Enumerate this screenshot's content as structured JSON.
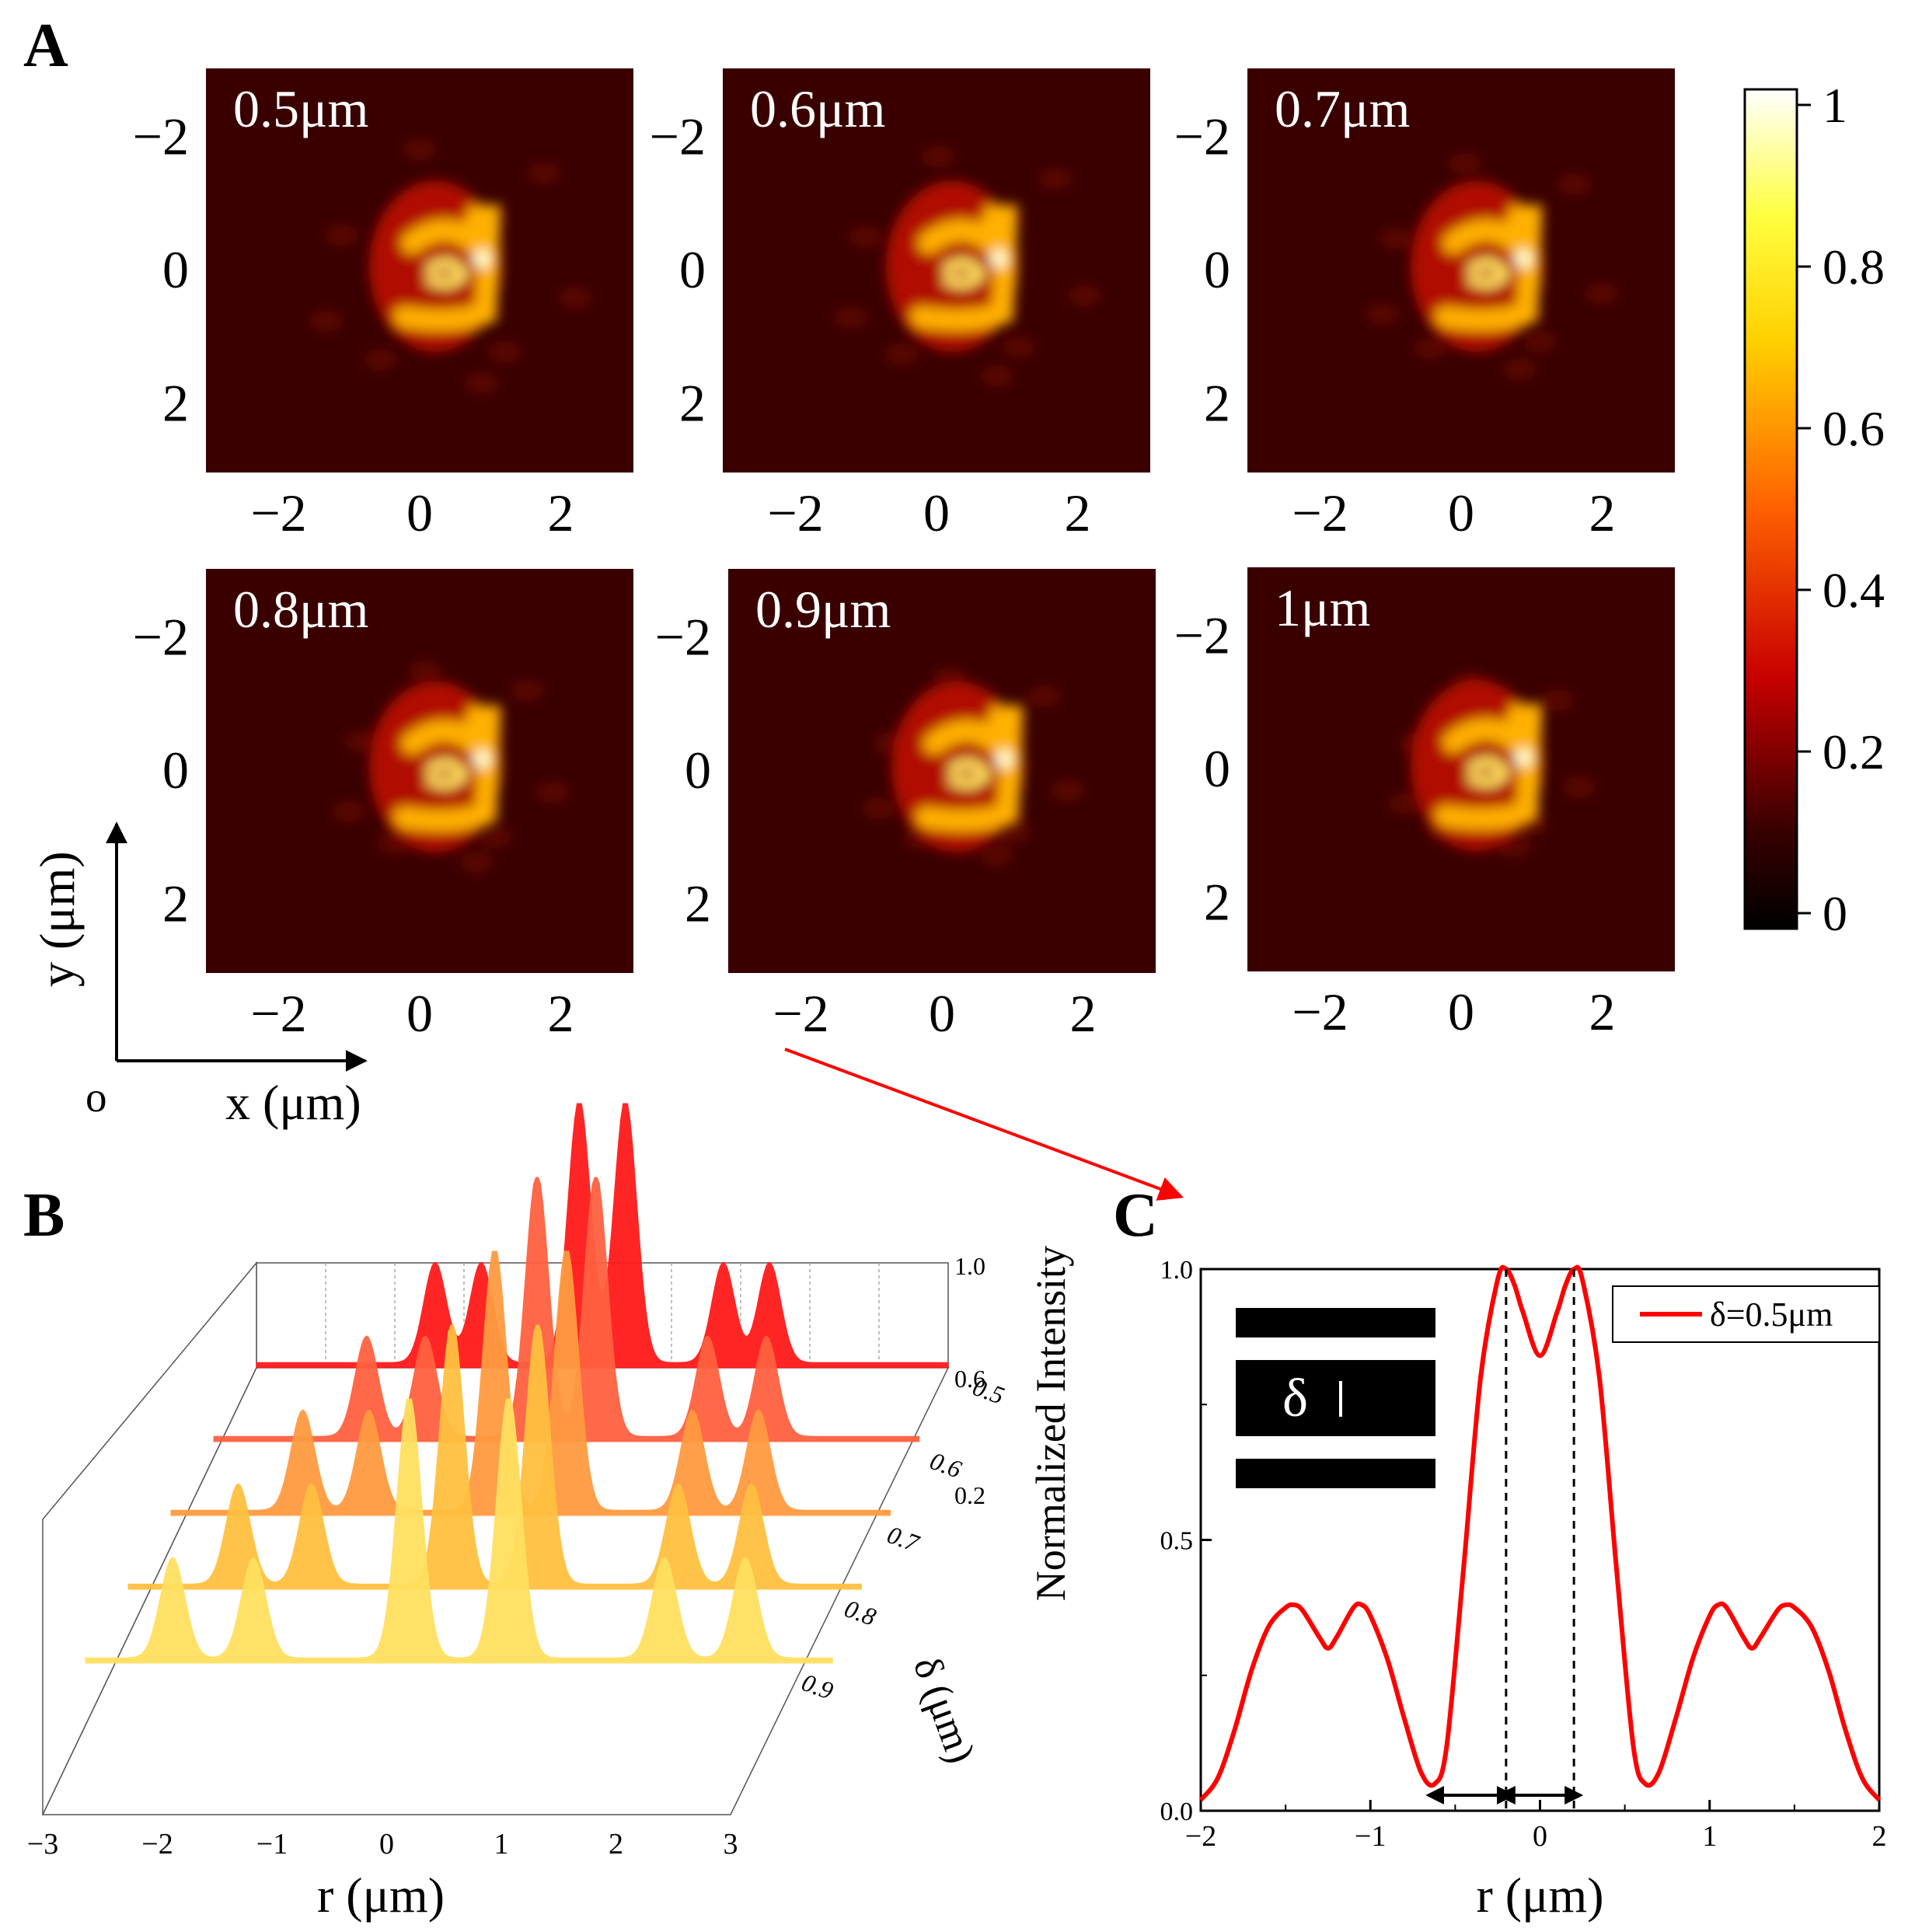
{
  "panel_labels": {
    "a": "A",
    "b": "B",
    "c": "C"
  },
  "colors": {
    "heat_bg": "#3a0000",
    "curve": "#ff0000"
  },
  "panel_a": {
    "axis_note": {
      "x_label": "x (μm)",
      "y_label": "y (μm)",
      "origin": "o"
    },
    "tick_labels": [
      "−2",
      "0",
      "2"
    ],
    "maps": [
      {
        "label": "0.5μm",
        "delta": 0.5
      },
      {
        "label": "0.6μm",
        "delta": 0.6
      },
      {
        "label": "0.7μm",
        "delta": 0.7
      },
      {
        "label": "0.8μm",
        "delta": 0.8
      },
      {
        "label": "0.9μm",
        "delta": 0.9
      },
      {
        "label": "1μm",
        "delta": 1.0
      }
    ],
    "colorbar": {
      "ticks": [
        "1",
        "0.8",
        "0.6",
        "0.4",
        "0.2",
        "0"
      ],
      "values": [
        1,
        0.8,
        0.6,
        0.4,
        0.2,
        0
      ]
    }
  },
  "chart_data": [
    {
      "type": "area",
      "title": "",
      "xlabel": "r (μm)",
      "zlabel": "δ (μm)",
      "x_ticks": [
        "−3",
        "−2",
        "−1",
        "0",
        "1",
        "2",
        "3"
      ],
      "z_ticks": [
        "1.0",
        "0.6",
        "0.2"
      ],
      "delta_ticks": [
        "0.5",
        "0.6",
        "0.7",
        "0.8",
        "0.9"
      ],
      "xlim": [
        -3,
        3
      ],
      "ylim": [
        0,
        1
      ],
      "series": [
        {
          "name": "0.5",
          "peaks": [
            -1.45,
            -1.05,
            -0.2,
            0.2,
            1.05,
            1.45
          ]
        },
        {
          "name": "0.6",
          "peaks": [
            -1.7,
            -1.2,
            -0.25,
            0.25,
            1.2,
            1.7
          ]
        },
        {
          "name": "0.7",
          "peaks": [
            -1.9,
            -1.35,
            -0.3,
            0.3,
            1.35,
            1.9
          ]
        },
        {
          "name": "0.8",
          "peaks": [
            -2.1,
            -1.5,
            -0.35,
            0.35,
            1.5,
            2.1
          ]
        },
        {
          "name": "0.9",
          "peaks": [
            -2.3,
            -1.65,
            -0.4,
            0.4,
            1.65,
            2.3
          ]
        }
      ]
    },
    {
      "type": "line",
      "title": "",
      "xlabel": "r (μm)",
      "ylabel": "Normalized Intensity",
      "xlim": [
        -2,
        2
      ],
      "ylim": [
        0,
        1
      ],
      "x_ticks": [
        "−2",
        "−1",
        "0",
        "1",
        "2"
      ],
      "y_ticks": [
        "0.0",
        "0.5",
        "1.0"
      ],
      "legend": "δ=0.5μm",
      "legend_position": "top-right",
      "inset_symbol": "δ",
      "series": [
        {
          "name": "δ=0.5μm",
          "x": [
            -2.0,
            -1.9,
            -1.8,
            -1.7,
            -1.6,
            -1.5,
            -1.45,
            -1.4,
            -1.3,
            -1.25,
            -1.2,
            -1.1,
            -1.05,
            -1.0,
            -0.9,
            -0.8,
            -0.7,
            -0.62,
            -0.55,
            -0.45,
            -0.35,
            -0.25,
            -0.2,
            -0.15,
            -0.1,
            0.0,
            0.1,
            0.15,
            0.2,
            0.25,
            0.35,
            0.45,
            0.55,
            0.62,
            0.7,
            0.8,
            0.9,
            1.0,
            1.05,
            1.1,
            1.2,
            1.25,
            1.3,
            1.4,
            1.45,
            1.5,
            1.6,
            1.7,
            1.8,
            1.9,
            2.0
          ],
          "y": [
            0.02,
            0.06,
            0.15,
            0.26,
            0.34,
            0.375,
            0.38,
            0.37,
            0.32,
            0.3,
            0.32,
            0.375,
            0.38,
            0.36,
            0.28,
            0.17,
            0.07,
            0.05,
            0.12,
            0.45,
            0.8,
            0.98,
            1.0,
            0.97,
            0.92,
            0.84,
            0.92,
            0.97,
            1.0,
            0.98,
            0.8,
            0.45,
            0.12,
            0.05,
            0.07,
            0.17,
            0.28,
            0.36,
            0.38,
            0.375,
            0.32,
            0.3,
            0.32,
            0.37,
            0.38,
            0.375,
            0.34,
            0.26,
            0.15,
            0.06,
            0.02
          ]
        }
      ]
    }
  ]
}
